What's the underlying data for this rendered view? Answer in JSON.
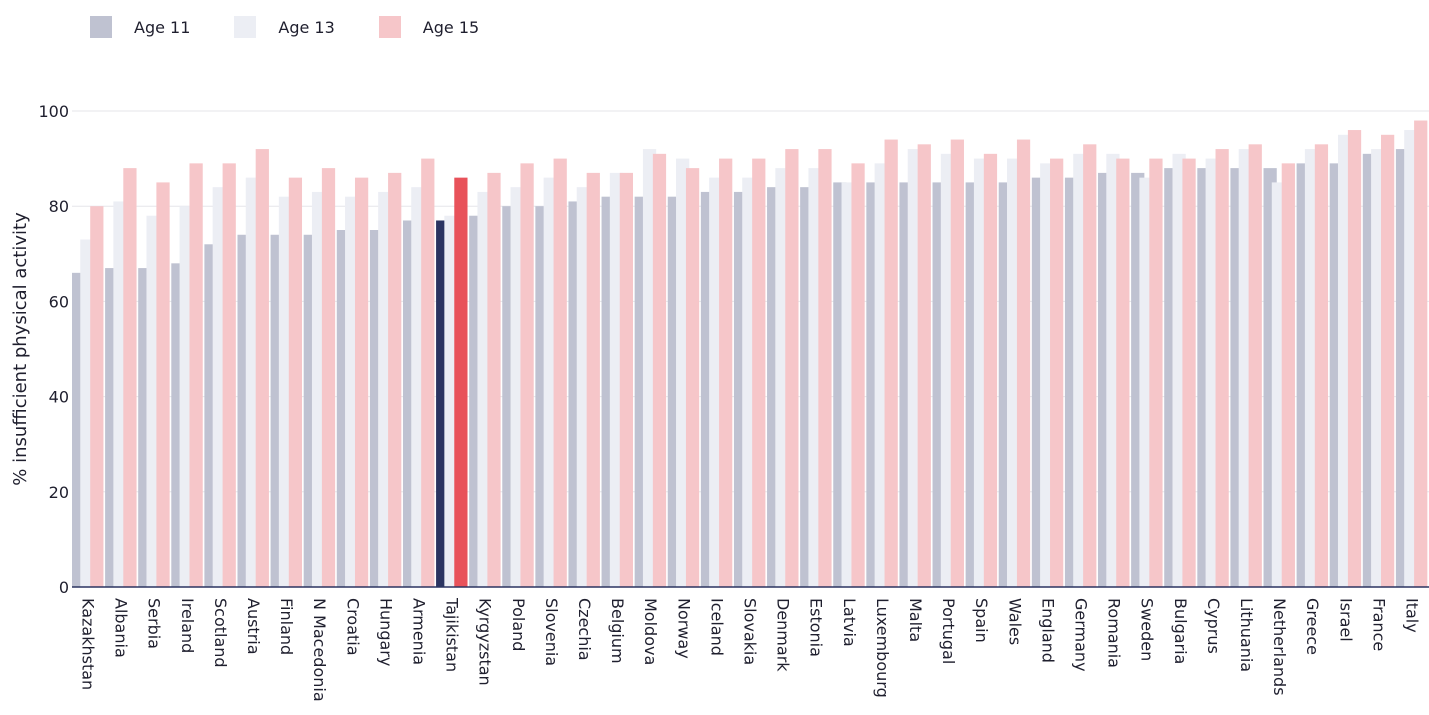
{
  "chart_data": {
    "type": "bar",
    "ylabel": "% insufficient physical activity",
    "xlabel": "",
    "ylim": [
      0,
      100
    ],
    "yticks": [
      0,
      20,
      40,
      60,
      80,
      100
    ],
    "grid": true,
    "legend_position": "top-left",
    "highlight_category": "Tajikistan",
    "highlight_colors": {
      "Age 11": "#2b3461",
      "Age 15": "#e8525a"
    },
    "categories": [
      "Kazakhstan",
      "Albania",
      "Serbia",
      "Ireland",
      "Scotland",
      "Austria",
      "Finland",
      "N Macedonia",
      "Croatia",
      "Hungary",
      "Armenia",
      "Tajikistan",
      "Kyrgyzstan",
      "Poland",
      "Slovenia",
      "Czechia",
      "Belgium",
      "Moldova",
      "Norway",
      "Iceland",
      "Slovakia",
      "Denmark",
      "Estonia",
      "Latvia",
      "Luxembourg",
      "Malta",
      "Portugal",
      "Spain",
      "Wales",
      "England",
      "Germany",
      "Romania",
      "Sweden",
      "Bulgaria",
      "Cyprus",
      "Lithuania",
      "Netherlands",
      "Greece",
      "Israel",
      "France",
      "Italy"
    ],
    "series": [
      {
        "name": "Age 11",
        "color": "#bfc2d1",
        "values": [
          66,
          67,
          67,
          68,
          72,
          74,
          74,
          74,
          75,
          75,
          77,
          77,
          78,
          80,
          80,
          81,
          82,
          82,
          82,
          83,
          83,
          84,
          84,
          85,
          85,
          85,
          85,
          85,
          85,
          86,
          86,
          87,
          87,
          88,
          88,
          88,
          88,
          89,
          89,
          91,
          92
        ]
      },
      {
        "name": "Age 13",
        "color": "#eceef4",
        "values": [
          73,
          81,
          78,
          80,
          84,
          86,
          82,
          83,
          82,
          83,
          84,
          78,
          83,
          84,
          86,
          84,
          87,
          92,
          90,
          86,
          86,
          88,
          88,
          85,
          89,
          92,
          91,
          90,
          90,
          89,
          91,
          91,
          86,
          91,
          90,
          92,
          85,
          92,
          95,
          92,
          96
        ]
      },
      {
        "name": "Age 15",
        "color": "#f6c6c9",
        "values": [
          80,
          88,
          85,
          89,
          89,
          92,
          86,
          88,
          86,
          87,
          90,
          86,
          87,
          89,
          90,
          87,
          87,
          91,
          88,
          90,
          90,
          92,
          92,
          89,
          94,
          93,
          94,
          91,
          94,
          90,
          93,
          90,
          90,
          90,
          92,
          93,
          89,
          93,
          96,
          95,
          98
        ]
      }
    ]
  }
}
